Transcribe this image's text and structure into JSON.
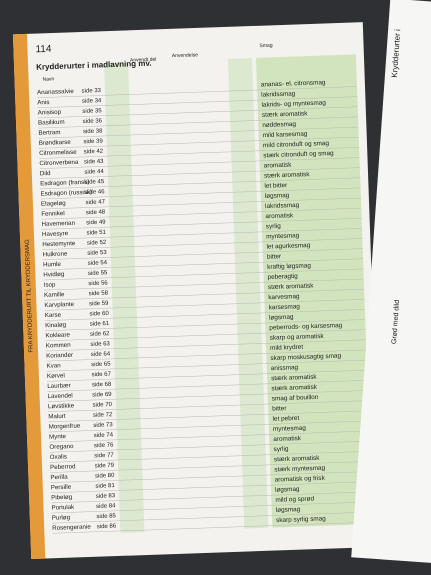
{
  "header": {
    "page_number": "114",
    "side_tab": "FRA KRYDDERURT TIL KRYDDERSMAG",
    "title": "Krydderurter i madlavning mv.",
    "col_name": "Navn",
    "col_part": "Anvendt del",
    "col_use": "Anvendelse",
    "col_taste": "Smag"
  },
  "right_page": {
    "title": "Krydderurter i",
    "caption": "Grød med dild"
  },
  "table": {
    "rows": [
      [
        "Ananassalvie",
        "side 33",
        "ananas- el. citronsmag"
      ],
      [
        "Anis",
        "side 34",
        "lakridssmag"
      ],
      [
        "Anisisop",
        "side 35",
        "lakrids- og myntesmag"
      ],
      [
        "Basilikum",
        "side 36",
        "stærk aromatisk"
      ],
      [
        "Bertram",
        "side 38",
        "nøddesmag"
      ],
      [
        "Brøndkarse",
        "side 39",
        "mild karsesmag"
      ],
      [
        "Citronmelisse",
        "side 42",
        "mild citronduft og smag"
      ],
      [
        "Citronverbena",
        "side 43",
        "stærk citronduft og smag"
      ],
      [
        "Dild",
        "side 44",
        "aromatisk"
      ],
      [
        "Esdragon (fransk)",
        "side 45",
        "stærk aromatisk"
      ],
      [
        "Esdragon (russisk)",
        "side 46",
        "let bitter"
      ],
      [
        "Etageløg",
        "side 47",
        "løgsmag"
      ],
      [
        "Fennikel",
        "side 48",
        "lakridssmag"
      ],
      [
        "Havemerian",
        "side 49",
        "aromatisk"
      ],
      [
        "Havesyre",
        "side 51",
        "syrlig"
      ],
      [
        "Hestemynte",
        "side 52",
        "myntesmag"
      ],
      [
        "Hulkrone",
        "side 53",
        "let agurkesmag"
      ],
      [
        "Humle",
        "side 54",
        "bitter"
      ],
      [
        "Hvidløg",
        "side 55",
        "kraftig løgsmag"
      ],
      [
        "Isop",
        "side 56",
        "peberagtig"
      ],
      [
        "Kamille",
        "side 58",
        "stærk aromatisk"
      ],
      [
        "Karvplante",
        "side 59",
        "karvesmag"
      ],
      [
        "Karse",
        "side 60",
        "karsesmag"
      ],
      [
        "Kinaløg",
        "side 61",
        "løgsmag"
      ],
      [
        "Kokleare",
        "side 62",
        "peberrods- og karsesmag"
      ],
      [
        "Kommen",
        "side 63",
        "skarp og aromatisk"
      ],
      [
        "Koriander",
        "side 64",
        "mild krydret"
      ],
      [
        "Kvan",
        "side 65",
        "skarp moskusagtig smag"
      ],
      [
        "Kørvel",
        "side 67",
        "anissmag"
      ],
      [
        "Laurbær",
        "side 68",
        "stærk aromatisk"
      ],
      [
        "Lavendel",
        "side 69",
        "stærk aromatisk"
      ],
      [
        "Løvstikke",
        "side 70",
        "smag af bouillon"
      ],
      [
        "Malurt",
        "side 72",
        "bitter"
      ],
      [
        "Morgenfrue",
        "side 73",
        "let pebret"
      ],
      [
        "Mynte",
        "side 74",
        "myntesmag"
      ],
      [
        "Oregano",
        "side 76",
        "aromatisk"
      ],
      [
        "Oxalis",
        "side 77",
        "syrlig"
      ],
      [
        "Peberrod",
        "side 79",
        "stærk aromatisk"
      ],
      [
        "Perilla",
        "side 80",
        "stærk myntesmag"
      ],
      [
        "Persille",
        "side 81",
        "aromatisk og frisk"
      ],
      [
        "Pibeløg",
        "side 83",
        "løgsmag"
      ],
      [
        "Portulak",
        "side 84",
        "mild og sprød"
      ],
      [
        "Purløg",
        "side 85",
        "løgsmag"
      ],
      [
        "Rosengeranie",
        "side 86",
        "skarp syrlig smag"
      ]
    ]
  }
}
